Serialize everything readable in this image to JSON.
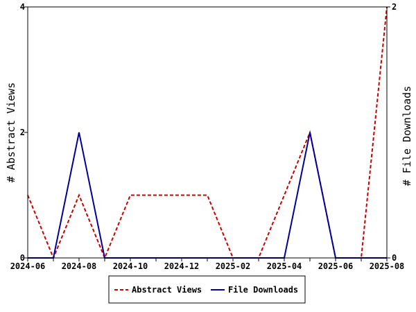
{
  "chart_data": {
    "type": "line",
    "title": "",
    "x": [
      "2024-06",
      "2024-07",
      "2024-08",
      "2024-09",
      "2024-10",
      "2024-11",
      "2024-12",
      "2025-01",
      "2025-02",
      "2025-03",
      "2025-04",
      "2025-05",
      "2025-06",
      "2025-07",
      "2025-08"
    ],
    "x_tick_labels": [
      "2024-06",
      "2024-08",
      "2024-10",
      "2024-12",
      "2025-02",
      "2025-04",
      "2025-06",
      "2025-08"
    ],
    "series": [
      {
        "name": "Abstract Views",
        "axis": "left",
        "color": "#cc0000",
        "dash": "dashed",
        "values": [
          1,
          0,
          1,
          0,
          1,
          1,
          1,
          1,
          0,
          0,
          1,
          2,
          0,
          0,
          4
        ]
      },
      {
        "name": "File Downloads",
        "axis": "right",
        "color": "#000099",
        "dash": "solid",
        "values": [
          0,
          0,
          1,
          0,
          0,
          0,
          0,
          0,
          0,
          0,
          0,
          1,
          0,
          0,
          0
        ]
      }
    ],
    "ylabel_left": "# Abstract Views",
    "ylabel_right": "# File Downloads",
    "ylim_left": [
      0,
      4
    ],
    "ylim_right": [
      0,
      2
    ],
    "y_ticks_left": [
      "0",
      "2",
      "4"
    ],
    "y_ticks_right": [
      "0",
      "2"
    ],
    "grid": false,
    "legend_position": "bottom"
  }
}
